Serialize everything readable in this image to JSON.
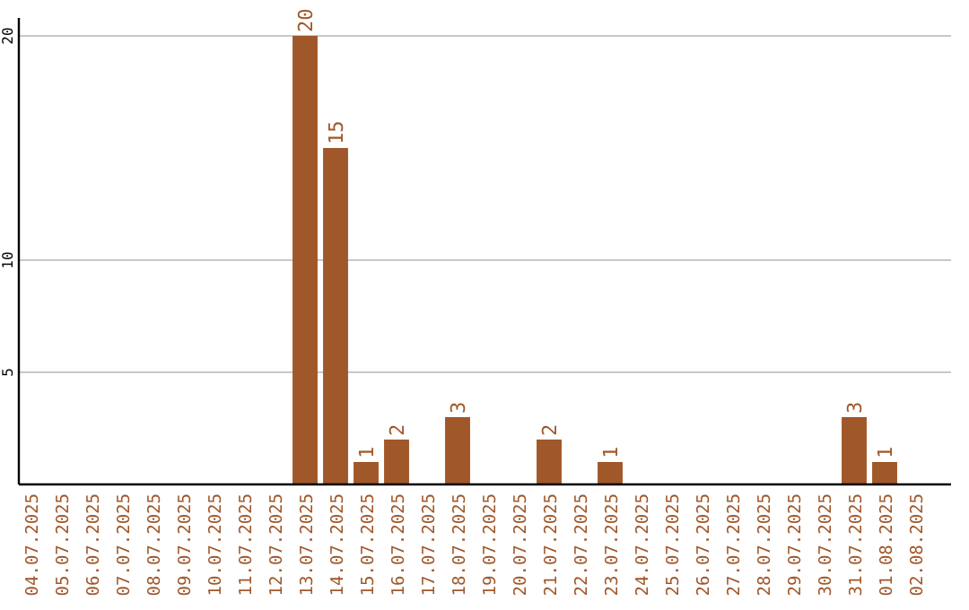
{
  "chart_data": {
    "type": "bar",
    "categories": [
      "04.07.2025",
      "05.07.2025",
      "06.07.2025",
      "07.07.2025",
      "08.07.2025",
      "09.07.2025",
      "10.07.2025",
      "11.07.2025",
      "12.07.2025",
      "13.07.2025",
      "14.07.2025",
      "15.07.2025",
      "16.07.2025",
      "17.07.2025",
      "18.07.2025",
      "19.07.2025",
      "20.07.2025",
      "21.07.2025",
      "22.07.2025",
      "23.07.2025",
      "24.07.2025",
      "25.07.2025",
      "26.07.2025",
      "27.07.2025",
      "28.07.2025",
      "29.07.2025",
      "30.07.2025",
      "31.07.2025",
      "01.08.2025",
      "02.08.2025"
    ],
    "values": [
      0,
      0,
      0,
      0,
      0,
      0,
      0,
      0,
      0,
      20,
      15,
      1,
      2,
      0,
      3,
      0,
      0,
      2,
      0,
      1,
      0,
      0,
      0,
      0,
      0,
      0,
      0,
      3,
      1,
      0
    ],
    "value_labels": [
      null,
      null,
      null,
      null,
      null,
      null,
      null,
      null,
      null,
      "20",
      "15",
      "1",
      "2",
      null,
      "3",
      null,
      null,
      "2",
      null,
      "1",
      null,
      null,
      null,
      null,
      null,
      null,
      null,
      "3",
      "1",
      null
    ],
    "color": "#a0572a",
    "ylim": [
      0,
      20.8
    ],
    "yticks": [
      5,
      10,
      20
    ],
    "grid": "y"
  }
}
